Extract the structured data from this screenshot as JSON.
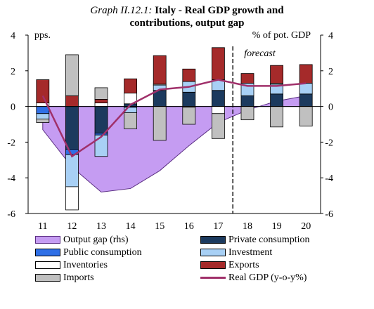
{
  "title": {
    "label": "Graph II.12.1:",
    "line1": "Italy - Real GDP growth and",
    "line2": "contributions, output gap"
  },
  "colors": {
    "output_gap": "#c59cf2",
    "output_gap_edge": "#5a2d82",
    "private_consumption": "#1c3a5e",
    "public_consumption": "#2f6fe6",
    "investment": "#a8d0f5",
    "inventories": "#ffffff",
    "exports": "#a52a2a",
    "imports": "#c0c0c0",
    "real_gdp": "#a0306a"
  },
  "chart_data": {
    "type": "bar",
    "stacked": true,
    "categories": [
      "11",
      "12",
      "13",
      "14",
      "15",
      "16",
      "17",
      "18",
      "19",
      "20"
    ],
    "ylabel_left": "pps.",
    "ylabel_right": "% of pot. GDP",
    "ylim": [
      -6,
      4
    ],
    "yticks": [
      -6,
      -4,
      -2,
      0,
      2,
      4
    ],
    "forecast_label": "forecast",
    "forecast_start_after": "17",
    "series": [
      {
        "name": "Private consumption",
        "key": "private_consumption",
        "values": [
          0.0,
          -2.4,
          -1.5,
          0.15,
          0.9,
          0.8,
          0.9,
          0.6,
          0.7,
          0.7
        ]
      },
      {
        "name": "Public consumption",
        "key": "public_consumption",
        "values": [
          -0.4,
          -0.3,
          -0.1,
          -0.05,
          0.0,
          0.0,
          0.0,
          0.0,
          0.0,
          0.0
        ]
      },
      {
        "name": "Investment",
        "key": "investment",
        "values": [
          -0.3,
          -1.8,
          -1.2,
          -0.3,
          0.3,
          0.6,
          0.6,
          0.7,
          0.55,
          0.6
        ]
      },
      {
        "name": "Inventories",
        "key": "inventories",
        "values": [
          0.2,
          -1.3,
          0.2,
          0.6,
          0.05,
          -0.05,
          -0.4,
          0.0,
          0.05,
          0.0
        ]
      },
      {
        "name": "Exports",
        "key": "exports",
        "values": [
          1.3,
          0.6,
          0.2,
          0.8,
          1.6,
          0.7,
          1.8,
          0.55,
          1.0,
          1.05
        ]
      },
      {
        "name": "Imports",
        "key": "imports",
        "values": [
          -0.2,
          2.3,
          0.65,
          -0.9,
          -1.9,
          -0.95,
          -1.4,
          -0.75,
          -1.15,
          -1.1
        ]
      }
    ],
    "output_gap": {
      "name": "Output gap (rhs)",
      "values": [
        -1.3,
        -3.4,
        -4.8,
        -4.6,
        -3.6,
        -2.2,
        -0.9,
        -0.2,
        0.3,
        0.6
      ]
    },
    "real_gdp": {
      "name": "Real GDP (y-o-y%)",
      "values": [
        0.6,
        -2.8,
        -1.7,
        0.1,
        0.95,
        1.1,
        1.5,
        1.15,
        1.15,
        1.3
      ]
    }
  },
  "legend": [
    {
      "label": "Output gap (rhs)",
      "key": "output_gap",
      "kind": "area"
    },
    {
      "label": "Private consumption",
      "key": "private_consumption",
      "kind": "bar"
    },
    {
      "label": "Public consumption",
      "key": "public_consumption",
      "kind": "bar"
    },
    {
      "label": "Investment",
      "key": "investment",
      "kind": "bar"
    },
    {
      "label": "Inventories",
      "key": "inventories",
      "kind": "bar"
    },
    {
      "label": "Exports",
      "key": "exports",
      "kind": "bar"
    },
    {
      "label": "Imports",
      "key": "imports",
      "kind": "bar"
    },
    {
      "label": "Real GDP (y-o-y%)",
      "key": "real_gdp",
      "kind": "line"
    }
  ]
}
